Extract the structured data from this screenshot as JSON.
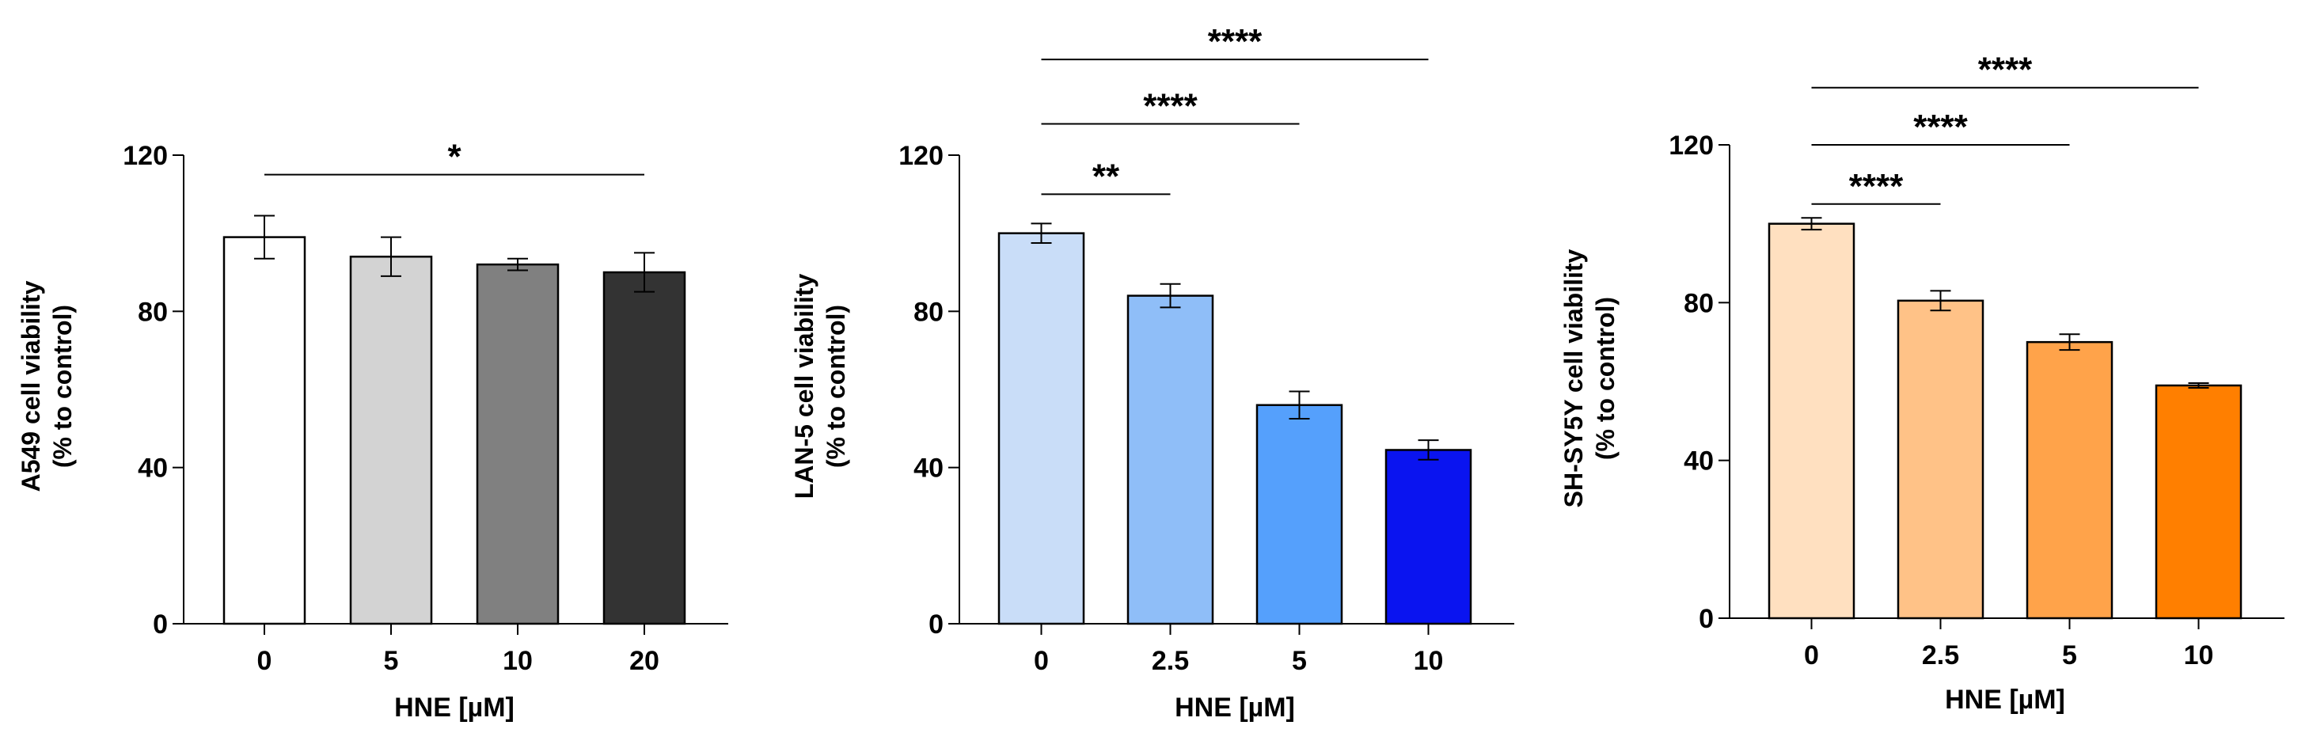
{
  "chart_data": [
    {
      "type": "bar",
      "categories": [
        "0",
        "5",
        "10",
        "20"
      ],
      "values": [
        99,
        94,
        92,
        90
      ],
      "errors": [
        5.5,
        5,
        1.5,
        5
      ],
      "colors": [
        "#FFFFFF",
        "#D3D3D3",
        "#808080",
        "#333333"
      ],
      "ylabel_line1": "A549 cell viability",
      "ylabel_line2": "(% to control)",
      "xlabel": "HNE [µM]",
      "ylim": [
        0,
        120
      ],
      "yticks": [
        0,
        40,
        80,
        120
      ],
      "grid": false,
      "significance": [
        {
          "from": 0,
          "to": 3,
          "label": "*",
          "y": 115
        }
      ]
    },
    {
      "type": "bar",
      "categories": [
        "0",
        "2.5",
        "5",
        "10"
      ],
      "values": [
        100,
        84,
        56,
        44.5
      ],
      "errors": [
        2.5,
        3,
        3.5,
        2.5
      ],
      "colors": [
        "#C9DDF8",
        "#8FBEF8",
        "#55A0FC",
        "#0A14F0"
      ],
      "ylabel_line1": "LAN-5 cell viability",
      "ylabel_line2": "(% to control)",
      "xlabel": "HNE [µM]",
      "ylim": [
        0,
        120
      ],
      "yticks": [
        0,
        40,
        80,
        120
      ],
      "grid": false,
      "significance": [
        {
          "from": 0,
          "to": 1,
          "label": "**",
          "y": 110
        },
        {
          "from": 0,
          "to": 2,
          "label": "****",
          "y": 128
        },
        {
          "from": 0,
          "to": 3,
          "label": "****",
          "y": 144.5
        }
      ]
    },
    {
      "type": "bar",
      "categories": [
        "0",
        "2.5",
        "5",
        "10"
      ],
      "values": [
        100,
        80.5,
        70,
        59
      ],
      "errors": [
        1.5,
        2.5,
        2,
        0.6
      ],
      "colors": [
        "#FFE0C0",
        "#FFC287",
        "#FFA34A",
        "#FF7F00"
      ],
      "ylabel_line1": "SH-SY5Y cell viability",
      "ylabel_line2": "(% to control)",
      "xlabel": "HNE [µM]",
      "ylim": [
        0,
        120
      ],
      "yticks": [
        0,
        40,
        80,
        120
      ],
      "grid": false,
      "significance": [
        {
          "from": 0,
          "to": 1,
          "label": "****",
          "y": 105
        },
        {
          "from": 0,
          "to": 2,
          "label": "****",
          "y": 120
        },
        {
          "from": 0,
          "to": 3,
          "label": "****",
          "y": 134.5
        }
      ]
    }
  ]
}
